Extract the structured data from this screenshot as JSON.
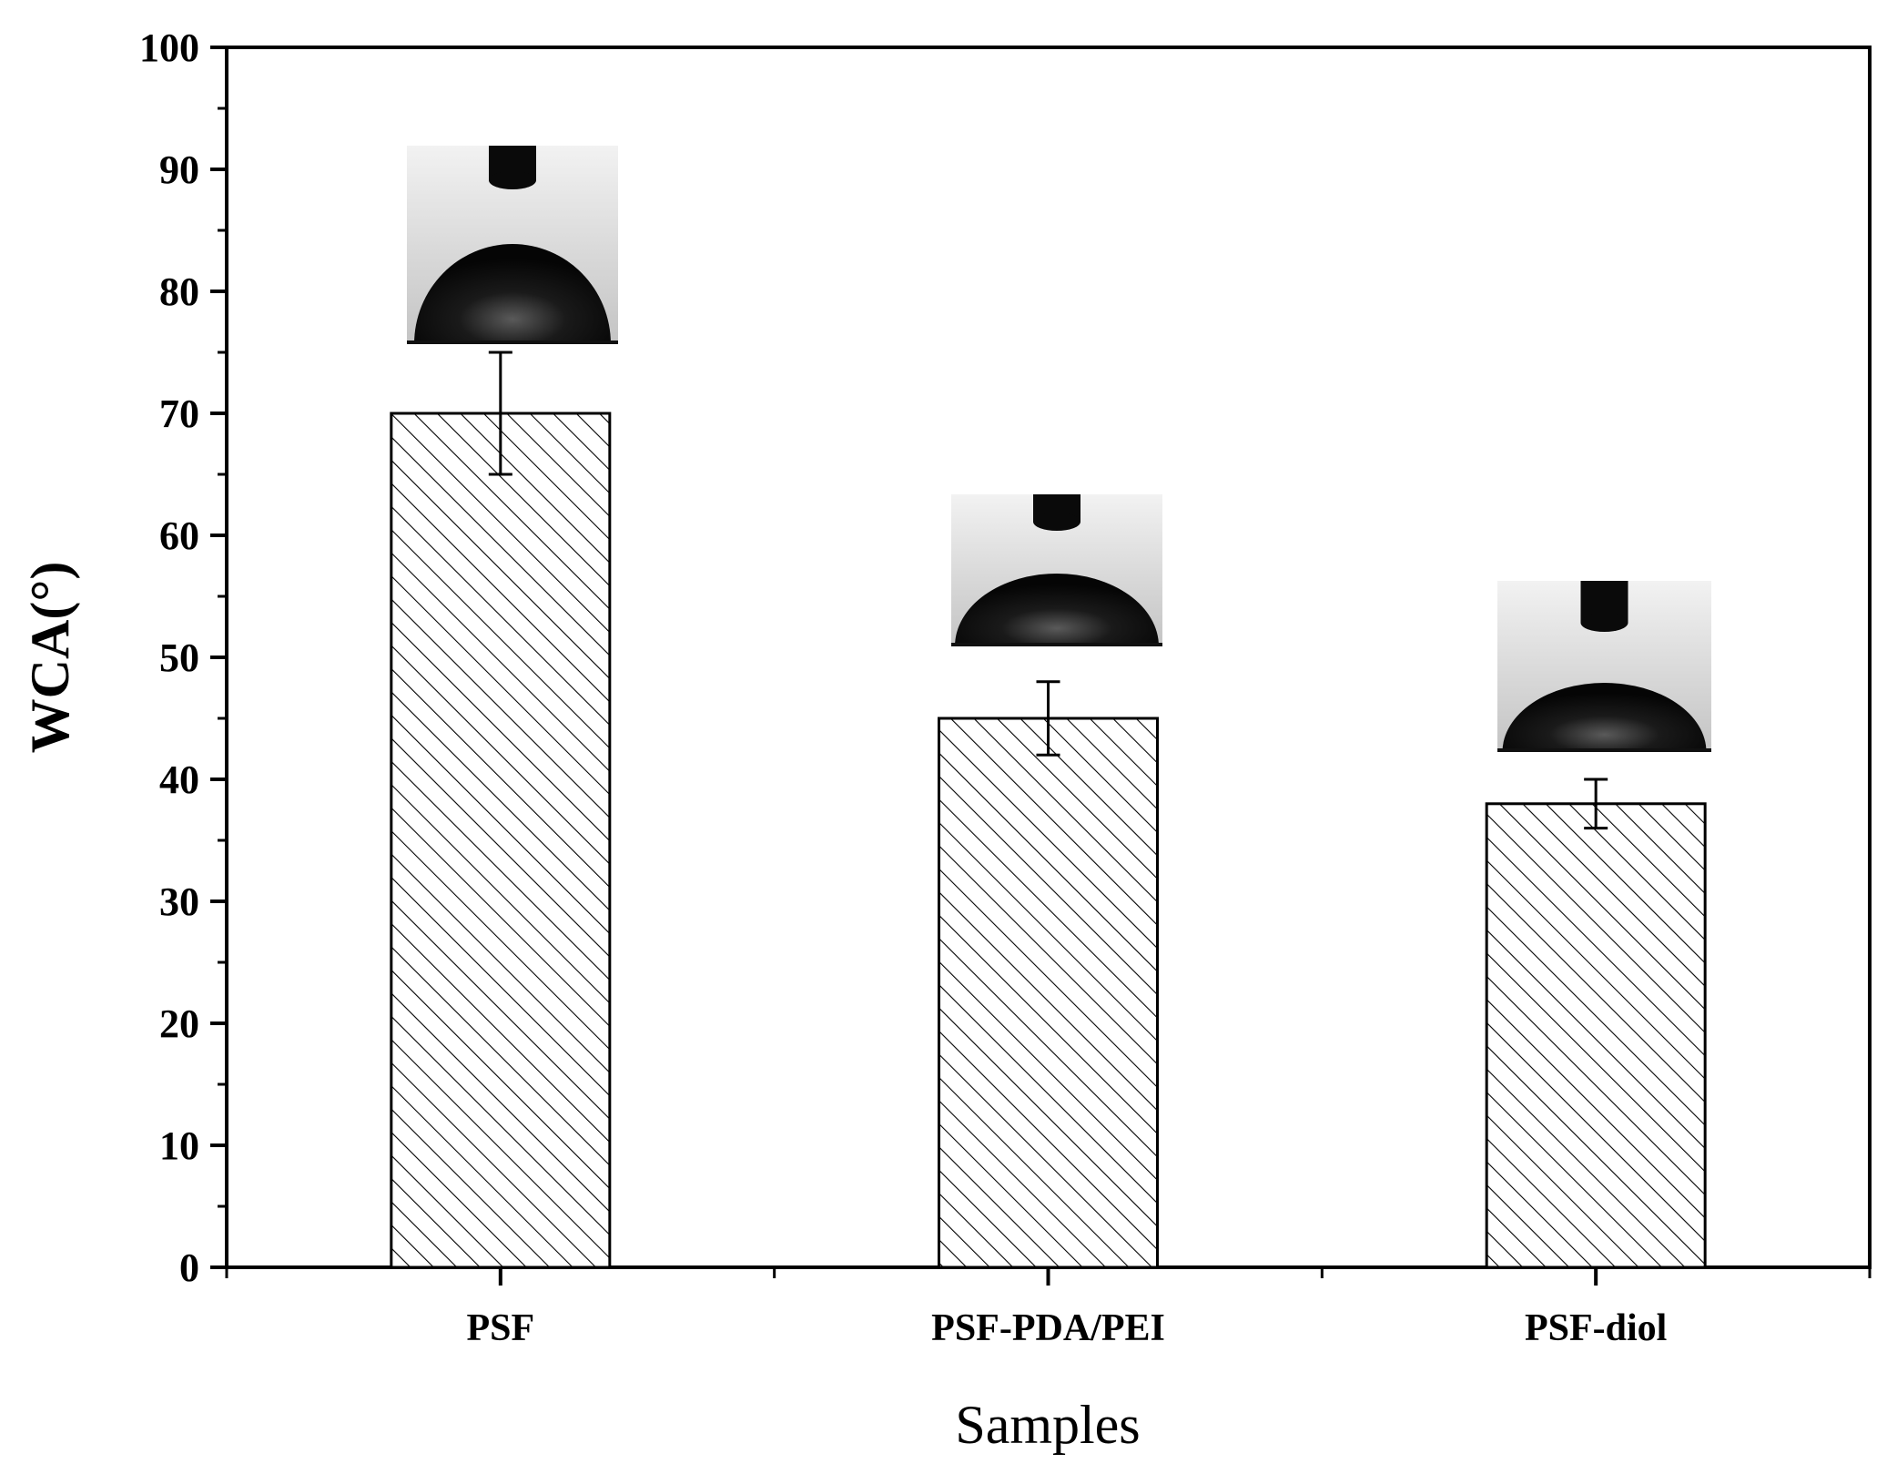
{
  "chart_data": {
    "type": "bar",
    "categories": [
      "PSF",
      "PSF-PDA/PEI",
      "PSF-diol"
    ],
    "values": [
      70,
      45,
      38
    ],
    "error": [
      5,
      3,
      2
    ],
    "xlabel": "Samples",
    "ylabel": "WCA(°)",
    "ylim": [
      0,
      100
    ],
    "yticks": [
      0,
      10,
      20,
      30,
      40,
      50,
      60,
      70,
      80,
      90,
      100
    ],
    "grid": false,
    "bar_fill": "hatched",
    "colors": {
      "bar_stroke": "#000000",
      "hatch": "#000000",
      "background": "#ffffff"
    },
    "insets": [
      "water-droplet-photo",
      "water-droplet-photo",
      "water-droplet-photo"
    ]
  }
}
